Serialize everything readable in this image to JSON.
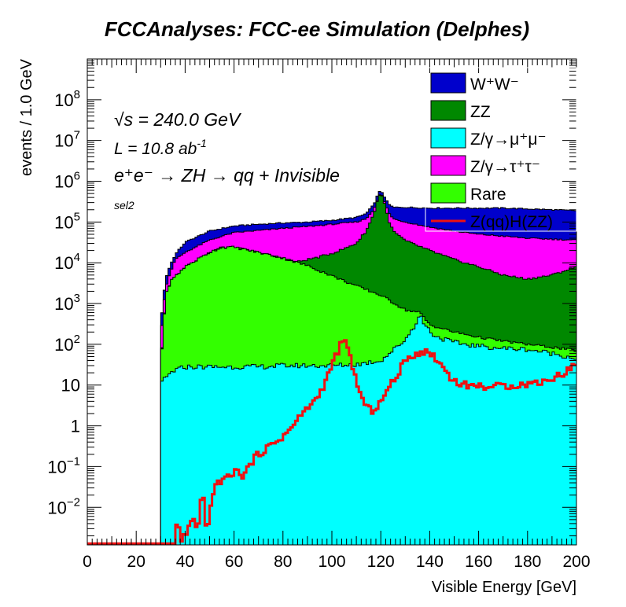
{
  "chart_data": {
    "type": "histogram-stacked",
    "title": "FCCAnalyses: FCC-ee Simulation (Delphes)",
    "xlabel": "Visible Energy [GeV]",
    "ylabel": "events / 1.0 GeV",
    "xlim": [
      0,
      200
    ],
    "ylim": [
      0.0012,
      1000000000
    ],
    "y_scale": "log",
    "x_ticks": [
      0,
      20,
      40,
      60,
      80,
      100,
      120,
      140,
      160,
      180,
      200
    ],
    "x_tick_labels": [
      "0",
      "20",
      "40",
      "60",
      "80",
      "100",
      "120",
      "140",
      "160",
      "180",
      "200"
    ],
    "y_ticks": [
      0.01,
      0.1,
      1,
      10,
      100,
      1000,
      10000,
      100000,
      1000000,
      10000000,
      100000000
    ],
    "y_tick_labels": [
      {
        "base": "10",
        "exp": "−2"
      },
      {
        "base": "10",
        "exp": "−1"
      },
      {
        "base": "1",
        "exp": ""
      },
      {
        "base": "10",
        "exp": ""
      },
      {
        "base": "10",
        "exp": "2"
      },
      {
        "base": "10",
        "exp": "3"
      },
      {
        "base": "10",
        "exp": "4"
      },
      {
        "base": "10",
        "exp": "5"
      },
      {
        "base": "10",
        "exp": "6"
      },
      {
        "base": "10",
        "exp": "7"
      },
      {
        "base": "10",
        "exp": "8"
      }
    ],
    "annotations": {
      "sqrt_s": "s = 240.0 GeV",
      "lumi": "L = 10.8 ab",
      "lumi_exp": "-1",
      "process": "e⁺e⁻ → ZH → qq + Invisible",
      "selection": "sel2"
    },
    "legend_position": "top-right",
    "colors": {
      "WW": "#0000cc",
      "ZZ": "#008800",
      "Zmumu": "#00ffff",
      "Ztautau": "#ff00ff",
      "Rare": "#33ff00",
      "signal": "#ee1111"
    },
    "legend": [
      {
        "key": "WW",
        "label": "W⁺W⁻",
        "style": "fill"
      },
      {
        "key": "ZZ",
        "label": "ZZ",
        "style": "fill"
      },
      {
        "key": "Zmumu",
        "label": "Z/γ→μ⁺μ⁻",
        "style": "fill"
      },
      {
        "key": "Ztautau",
        "label": "Z/γ→τ⁺τ⁻",
        "style": "fill"
      },
      {
        "key": "Rare",
        "label": "Rare",
        "style": "fill"
      },
      {
        "key": "signal",
        "label": "Z(qq)H(ZZ)",
        "style": "line"
      }
    ],
    "stack_cumulative_curves": {
      "note_units": "events / 1.0 GeV, upper edge of each stacked layer, piecewise-log interpolated between (x, y) points",
      "Zmumu_top": [
        [
          30.5,
          12
        ],
        [
          35,
          22
        ],
        [
          40,
          28
        ],
        [
          50,
          28
        ],
        [
          60,
          28
        ],
        [
          70,
          28
        ],
        [
          80,
          30
        ],
        [
          90,
          30
        ],
        [
          100,
          30
        ],
        [
          110,
          32
        ],
        [
          120,
          40
        ],
        [
          126,
          80
        ],
        [
          130,
          130
        ],
        [
          134,
          300
        ],
        [
          136,
          520
        ],
        [
          138,
          300
        ],
        [
          142,
          160
        ],
        [
          150,
          110
        ],
        [
          160,
          90
        ],
        [
          170,
          80
        ],
        [
          180,
          75
        ],
        [
          190,
          60
        ],
        [
          200,
          45
        ]
      ],
      "Rare_top": [
        [
          30.5,
          80
        ],
        [
          32,
          1500
        ],
        [
          34,
          3500
        ],
        [
          40,
          8000
        ],
        [
          50,
          18000
        ],
        [
          55,
          24000
        ],
        [
          60,
          24000
        ],
        [
          70,
          18000
        ],
        [
          80,
          13000
        ],
        [
          90,
          8500
        ],
        [
          100,
          4800
        ],
        [
          110,
          2700
        ],
        [
          120,
          1600
        ],
        [
          130,
          700
        ],
        [
          136,
          600
        ],
        [
          140,
          300
        ],
        [
          150,
          200
        ],
        [
          160,
          150
        ],
        [
          170,
          120
        ],
        [
          180,
          100
        ],
        [
          190,
          85
        ],
        [
          200,
          70
        ]
      ],
      "ZZ_top": [
        [
          30.5,
          80
        ],
        [
          32,
          1500
        ],
        [
          34,
          3500
        ],
        [
          40,
          8000
        ],
        [
          50,
          18000
        ],
        [
          55,
          24000
        ],
        [
          60,
          24000
        ],
        [
          70,
          18000
        ],
        [
          80,
          13000
        ],
        [
          86,
          10500
        ],
        [
          90,
          12000
        ],
        [
          95,
          14000
        ],
        [
          100,
          17000
        ],
        [
          105,
          22000
        ],
        [
          110,
          30000
        ],
        [
          114,
          60000
        ],
        [
          117,
          150000
        ],
        [
          119,
          400000
        ],
        [
          120,
          520000
        ],
        [
          121,
          380000
        ],
        [
          123,
          120000
        ],
        [
          125,
          60000
        ],
        [
          130,
          35000
        ],
        [
          140,
          20000
        ],
        [
          150,
          12000
        ],
        [
          160,
          8000
        ],
        [
          170,
          5000
        ],
        [
          180,
          4000
        ],
        [
          190,
          5000
        ],
        [
          200,
          8000
        ]
      ],
      "Ztautau_top": [
        [
          30.5,
          300
        ],
        [
          32,
          2500
        ],
        [
          34,
          6000
        ],
        [
          36,
          12000
        ],
        [
          40,
          18000
        ],
        [
          50,
          36000
        ],
        [
          60,
          55000
        ],
        [
          70,
          62000
        ],
        [
          80,
          70000
        ],
        [
          90,
          78000
        ],
        [
          100,
          88000
        ],
        [
          110,
          100000
        ],
        [
          114,
          120000
        ],
        [
          117,
          200000
        ],
        [
          119,
          400000
        ],
        [
          120,
          520000
        ],
        [
          121,
          380000
        ],
        [
          123,
          180000
        ],
        [
          125,
          120000
        ],
        [
          130,
          100000
        ],
        [
          140,
          75000
        ],
        [
          150,
          60000
        ],
        [
          160,
          50000
        ],
        [
          170,
          45000
        ],
        [
          180,
          40000
        ],
        [
          190,
          38000
        ],
        [
          200,
          36000
        ]
      ],
      "WW_top": [
        [
          30.5,
          600
        ],
        [
          32,
          4000
        ],
        [
          34,
          9000
        ],
        [
          36,
          16000
        ],
        [
          40,
          32000
        ],
        [
          50,
          60000
        ],
        [
          60,
          80000
        ],
        [
          70,
          88000
        ],
        [
          80,
          95000
        ],
        [
          90,
          100000
        ],
        [
          100,
          110000
        ],
        [
          110,
          130000
        ],
        [
          114,
          160000
        ],
        [
          117,
          260000
        ],
        [
          119,
          500000
        ],
        [
          120,
          600000
        ],
        [
          121,
          480000
        ],
        [
          123,
          280000
        ],
        [
          125,
          230000
        ],
        [
          130,
          230000
        ],
        [
          140,
          220000
        ],
        [
          150,
          220000
        ],
        [
          160,
          220000
        ],
        [
          170,
          220000
        ],
        [
          180,
          210000
        ],
        [
          190,
          200000
        ],
        [
          200,
          190000
        ]
      ]
    },
    "signal_curve": [
      [
        0,
        0.0013
      ],
      [
        36,
        0.0013
      ],
      [
        37,
        0.009
      ],
      [
        38,
        0.0013
      ],
      [
        44,
        0.006
      ],
      [
        45,
        0.0013
      ],
      [
        46,
        0.009
      ],
      [
        47,
        0.02
      ],
      [
        48,
        0.01
      ],
      [
        49,
        0.0013
      ],
      [
        50,
        0.01
      ],
      [
        52,
        0.03
      ],
      [
        54,
        0.04
      ],
      [
        56,
        0.06
      ],
      [
        58,
        0.05
      ],
      [
        60,
        0.08
      ],
      [
        62,
        0.07
      ],
      [
        64,
        0.06
      ],
      [
        66,
        0.1
      ],
      [
        68,
        0.15
      ],
      [
        70,
        0.2
      ],
      [
        72,
        0.25
      ],
      [
        74,
        0.3
      ],
      [
        76,
        0.35
      ],
      [
        78,
        0.45
      ],
      [
        80,
        0.55
      ],
      [
        82,
        0.7
      ],
      [
        84,
        1.0
      ],
      [
        86,
        1.4
      ],
      [
        88,
        2.0
      ],
      [
        90,
        2.8
      ],
      [
        92,
        3.5
      ],
      [
        94,
        5
      ],
      [
        96,
        8
      ],
      [
        98,
        15
      ],
      [
        100,
        30
      ],
      [
        102,
        60
      ],
      [
        104,
        105
      ],
      [
        105,
        120
      ],
      [
        106,
        95
      ],
      [
        108,
        40
      ],
      [
        110,
        12
      ],
      [
        112,
        5
      ],
      [
        114,
        3
      ],
      [
        116,
        2.3
      ],
      [
        118,
        2.8
      ],
      [
        120,
        4
      ],
      [
        122,
        6
      ],
      [
        124,
        10
      ],
      [
        126,
        15
      ],
      [
        128,
        25
      ],
      [
        130,
        38
      ],
      [
        132,
        50
      ],
      [
        134,
        58
      ],
      [
        136,
        65
      ],
      [
        138,
        65
      ],
      [
        140,
        60
      ],
      [
        142,
        50
      ],
      [
        144,
        35
      ],
      [
        146,
        25
      ],
      [
        148,
        17
      ],
      [
        150,
        13
      ],
      [
        152,
        11
      ],
      [
        155,
        10
      ],
      [
        160,
        9.5
      ],
      [
        165,
        9
      ],
      [
        170,
        9.5
      ],
      [
        175,
        10
      ],
      [
        180,
        10.5
      ],
      [
        185,
        12
      ],
      [
        190,
        14
      ],
      [
        195,
        20
      ],
      [
        200,
        35
      ]
    ]
  }
}
